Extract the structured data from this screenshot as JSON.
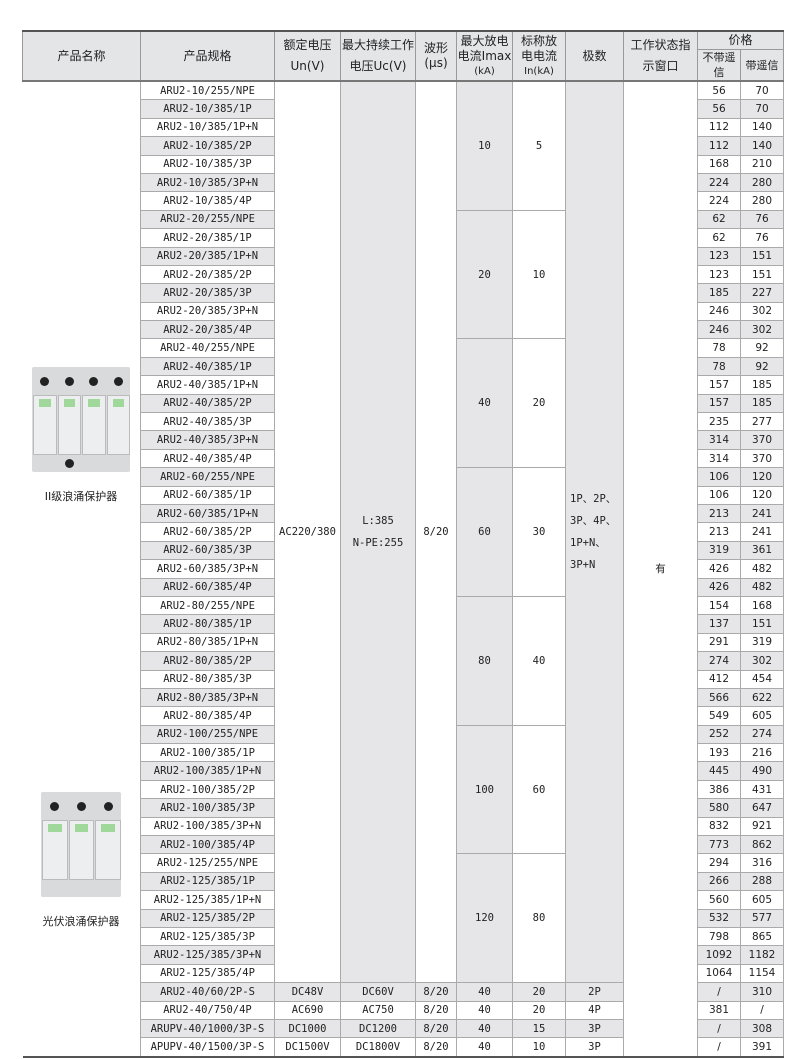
{
  "header": {
    "name": "产品名称",
    "spec": "产品规格",
    "un_1": "额定电压",
    "un_2": "Un(V)",
    "uc_1": "最大持续工作",
    "uc_2": "电压Uc(V)",
    "wave_1": "波形",
    "wave_2": "(μs)",
    "imax_1": "最大放电",
    "imax_2": "电流Imax",
    "imax_3": "(kA)",
    "in_1": "标称放",
    "in_2": "电电流",
    "in_3": "In(kA)",
    "poles": "极数",
    "status_1": "工作状态指",
    "status_2": "示窗口",
    "price": "价格",
    "price_no_remote": "不带遥信",
    "price_remote": "带遥信"
  },
  "products": [
    {
      "label": "II级浪涌保护器",
      "icon": "ac-spd-4-module-image"
    },
    {
      "label": "光伏浪涌保护器",
      "icon": "pv-spd-3-module-image"
    }
  ],
  "shared": {
    "un": "AC220/380",
    "uc_1": "L:385",
    "uc_2": "N-PE:255",
    "wave": "8/20",
    "poles_lines": [
      "1P、2P、",
      "3P、4P、",
      "1P+N、",
      "3P+N"
    ],
    "status": "有"
  },
  "groups": [
    {
      "imax": "10",
      "in": "5",
      "rows": [
        [
          "ARU2-10/255/NPE",
          "56",
          "70"
        ],
        [
          "ARU2-10/385/1P",
          "56",
          "70"
        ],
        [
          "ARU2-10/385/1P+N",
          "112",
          "140"
        ],
        [
          "ARU2-10/385/2P",
          "112",
          "140"
        ],
        [
          "ARU2-10/385/3P",
          "168",
          "210"
        ],
        [
          "ARU2-10/385/3P+N",
          "224",
          "280"
        ],
        [
          "ARU2-10/385/4P",
          "224",
          "280"
        ]
      ]
    },
    {
      "imax": "20",
      "in": "10",
      "rows": [
        [
          "ARU2-20/255/NPE",
          "62",
          "76"
        ],
        [
          "ARU2-20/385/1P",
          "62",
          "76"
        ],
        [
          "ARU2-20/385/1P+N",
          "123",
          "151"
        ],
        [
          "ARU2-20/385/2P",
          "123",
          "151"
        ],
        [
          "ARU2-20/385/3P",
          "185",
          "227"
        ],
        [
          "ARU2-20/385/3P+N",
          "246",
          "302"
        ],
        [
          "ARU2-20/385/4P",
          "246",
          "302"
        ]
      ]
    },
    {
      "imax": "40",
      "in": "20",
      "rows": [
        [
          "ARU2-40/255/NPE",
          "78",
          "92"
        ],
        [
          "ARU2-40/385/1P",
          "78",
          "92"
        ],
        [
          "ARU2-40/385/1P+N",
          "157",
          "185"
        ],
        [
          "ARU2-40/385/2P",
          "157",
          "185"
        ],
        [
          "ARU2-40/385/3P",
          "235",
          "277"
        ],
        [
          "ARU2-40/385/3P+N",
          "314",
          "370"
        ],
        [
          "ARU2-40/385/4P",
          "314",
          "370"
        ]
      ]
    },
    {
      "imax": "60",
      "in": "30",
      "rows": [
        [
          "ARU2-60/255/NPE",
          "106",
          "120"
        ],
        [
          "ARU2-60/385/1P",
          "106",
          "120"
        ],
        [
          "ARU2-60/385/1P+N",
          "213",
          "241"
        ],
        [
          "ARU2-60/385/2P",
          "213",
          "241"
        ],
        [
          "ARU2-60/385/3P",
          "319",
          "361"
        ],
        [
          "ARU2-60/385/3P+N",
          "426",
          "482"
        ],
        [
          "ARU2-60/385/4P",
          "426",
          "482"
        ]
      ]
    },
    {
      "imax": "80",
      "in": "40",
      "rows": [
        [
          "ARU2-80/255/NPE",
          "154",
          "168"
        ],
        [
          "ARU2-80/385/1P",
          "137",
          "151"
        ],
        [
          "ARU2-80/385/1P+N",
          "291",
          "319"
        ],
        [
          "ARU2-80/385/2P",
          "274",
          "302"
        ],
        [
          "ARU2-80/385/3P",
          "412",
          "454"
        ],
        [
          "ARU2-80/385/3P+N",
          "566",
          "622"
        ],
        [
          "ARU2-80/385/4P",
          "549",
          "605"
        ]
      ]
    },
    {
      "imax": "100",
      "in": "60",
      "rows": [
        [
          "ARU2-100/255/NPE",
          "252",
          "274"
        ],
        [
          "ARU2-100/385/1P",
          "193",
          "216"
        ],
        [
          "ARU2-100/385/1P+N",
          "445",
          "490"
        ],
        [
          "ARU2-100/385/2P",
          "386",
          "431"
        ],
        [
          "ARU2-100/385/3P",
          "580",
          "647"
        ],
        [
          "ARU2-100/385/3P+N",
          "832",
          "921"
        ],
        [
          "ARU2-100/385/4P",
          "773",
          "862"
        ]
      ]
    },
    {
      "imax": "120",
      "in": "80",
      "rows": [
        [
          "ARU2-125/255/NPE",
          "294",
          "316"
        ],
        [
          "ARU2-125/385/1P",
          "266",
          "288"
        ],
        [
          "ARU2-125/385/1P+N",
          "560",
          "605"
        ],
        [
          "ARU2-125/385/2P",
          "532",
          "577"
        ],
        [
          "ARU2-125/385/3P",
          "798",
          "865"
        ],
        [
          "ARU2-125/385/3P+N",
          "1092",
          "1182"
        ],
        [
          "ARU2-125/385/4P",
          "1064",
          "1154"
        ]
      ]
    }
  ],
  "extra_rows": [
    {
      "spec": "ARU2-40/60/2P-S",
      "un": "DC48V",
      "uc": "DC60V",
      "wave": "8/20",
      "imax": "40",
      "in": "20",
      "poles": "2P",
      "p1": "/",
      "p2": "310"
    },
    {
      "spec": "ARU2-40/750/4P",
      "un": "AC690",
      "uc": "AC750",
      "wave": "8/20",
      "imax": "40",
      "in": "20",
      "poles": "4P",
      "p1": "381",
      "p2": "/"
    },
    {
      "spec": "ARUPV-40/1000/3P-S",
      "un": "DC1000",
      "uc": "DC1200",
      "wave": "8/20",
      "imax": "40",
      "in": "15",
      "poles": "3P",
      "p1": "/",
      "p2": "308"
    },
    {
      "spec": "APUPV-40/1500/3P-S",
      "un": "DC1500V",
      "uc": "DC1800V",
      "wave": "8/20",
      "imax": "40",
      "in": "10",
      "poles": "3P",
      "p1": "/",
      "p2": "391"
    }
  ]
}
